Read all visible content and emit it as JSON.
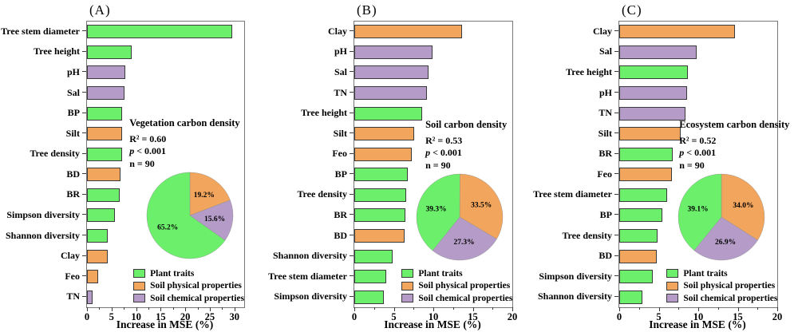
{
  "figure": {
    "background": "#ffffff",
    "colors": {
      "plant": "#6cf06c",
      "soil_physical": "#f2a55d",
      "soil_chemical": "#b59cc8"
    },
    "legend": [
      {
        "label": "Plant traits",
        "group": "plant"
      },
      {
        "label": "Soil physical properties",
        "group": "soil_physical"
      },
      {
        "label": "Soil chemical properties",
        "group": "soil_chemical"
      }
    ]
  },
  "chart_data": [
    {
      "type": "bar",
      "panel_label": "(A)",
      "inset_title": "Vegetation carbon density",
      "stats": {
        "r2": "R² = 0.60",
        "p": "p < 0.001",
        "n": "n = 90"
      },
      "xlabel": "Increase in MSE (%)",
      "x_ticks": [
        0,
        5,
        10,
        15,
        20,
        25,
        30
      ],
      "xlim": [
        0,
        32
      ],
      "bars": [
        {
          "label": "Tree stem diameter",
          "value": 29.6,
          "group": "plant"
        },
        {
          "label": "Tree height",
          "value": 9.1,
          "group": "plant"
        },
        {
          "label": "pH",
          "value": 7.8,
          "group": "soil_chemical"
        },
        {
          "label": "Sal",
          "value": 7.6,
          "group": "soil_chemical"
        },
        {
          "label": "BP",
          "value": 7.2,
          "group": "plant"
        },
        {
          "label": "Silt",
          "value": 7.2,
          "group": "soil_physical"
        },
        {
          "label": "Tree density",
          "value": 7.1,
          "group": "plant"
        },
        {
          "label": "BD",
          "value": 6.9,
          "group": "soil_physical"
        },
        {
          "label": "BR",
          "value": 6.7,
          "group": "plant"
        },
        {
          "label": "Simpson diversity",
          "value": 5.7,
          "group": "plant"
        },
        {
          "label": "Shannon diversity",
          "value": 4.2,
          "group": "plant"
        },
        {
          "label": "Clay",
          "value": 4.2,
          "group": "soil_physical"
        },
        {
          "label": "Feo",
          "value": 2.2,
          "group": "soil_physical"
        },
        {
          "label": "TN",
          "value": 1.2,
          "group": "soil_chemical"
        }
      ],
      "pie": {
        "slices_clockwise_from_top": [
          {
            "group": "soil_physical",
            "pct": 19.2,
            "label": "19.2%"
          },
          {
            "group": "soil_chemical",
            "pct": 15.6,
            "label": "15.6%"
          },
          {
            "group": "plant",
            "pct": 65.2,
            "label": "65.2%"
          }
        ]
      }
    },
    {
      "type": "bar",
      "panel_label": "(B)",
      "inset_title": "Soil carbon density",
      "stats": {
        "r2": "R² = 0.53",
        "p": "p < 0.001",
        "n": "n = 90"
      },
      "xlabel": "Increase in MSE (%)",
      "x_ticks": [
        0,
        5,
        10,
        15,
        20
      ],
      "xlim": [
        0,
        20
      ],
      "bars": [
        {
          "label": "Clay",
          "value": 13.6,
          "group": "soil_physical"
        },
        {
          "label": "pH",
          "value": 9.9,
          "group": "soil_chemical"
        },
        {
          "label": "Sal",
          "value": 9.4,
          "group": "soil_chemical"
        },
        {
          "label": "TN",
          "value": 9.2,
          "group": "soil_chemical"
        },
        {
          "label": "Tree height",
          "value": 8.6,
          "group": "plant"
        },
        {
          "label": "Silt",
          "value": 7.6,
          "group": "soil_physical"
        },
        {
          "label": "Feo",
          "value": 7.3,
          "group": "soil_physical"
        },
        {
          "label": "BP",
          "value": 6.8,
          "group": "plant"
        },
        {
          "label": "Tree density",
          "value": 6.6,
          "group": "plant"
        },
        {
          "label": "BR",
          "value": 6.5,
          "group": "plant"
        },
        {
          "label": "BD",
          "value": 6.4,
          "group": "soil_physical"
        },
        {
          "label": "Shannon diversity",
          "value": 4.8,
          "group": "plant"
        },
        {
          "label": "Tree stem diameter",
          "value": 4.0,
          "group": "plant"
        },
        {
          "label": "Simpson diversity",
          "value": 3.7,
          "group": "plant"
        }
      ],
      "pie": {
        "slices_clockwise_from_top": [
          {
            "group": "soil_physical",
            "pct": 33.5,
            "label": "33.5%"
          },
          {
            "group": "soil_chemical",
            "pct": 27.3,
            "label": "27.3%"
          },
          {
            "group": "plant",
            "pct": 39.3,
            "label": "39.3%"
          }
        ]
      }
    },
    {
      "type": "bar",
      "panel_label": "(C)",
      "inset_title": "Ecosystem carbon density",
      "stats": {
        "r2": "R² = 0.52",
        "p": "p < 0.001",
        "n": "n = 90"
      },
      "xlabel": "Increase in MSE (%)",
      "x_ticks": [
        0,
        5,
        10,
        15,
        20
      ],
      "xlim": [
        0,
        20
      ],
      "bars": [
        {
          "label": "Clay",
          "value": 14.6,
          "group": "soil_physical"
        },
        {
          "label": "Sal",
          "value": 9.8,
          "group": "soil_chemical"
        },
        {
          "label": "Tree height",
          "value": 8.7,
          "group": "plant"
        },
        {
          "label": "pH",
          "value": 8.6,
          "group": "soil_chemical"
        },
        {
          "label": "TN",
          "value": 8.4,
          "group": "soil_chemical"
        },
        {
          "label": "Silt",
          "value": 7.8,
          "group": "soil_physical"
        },
        {
          "label": "BR",
          "value": 6.8,
          "group": "plant"
        },
        {
          "label": "Feo",
          "value": 6.7,
          "group": "soil_physical"
        },
        {
          "label": "Tree stem diameter",
          "value": 6.1,
          "group": "plant"
        },
        {
          "label": "BP",
          "value": 5.5,
          "group": "plant"
        },
        {
          "label": "Tree density",
          "value": 4.8,
          "group": "plant"
        },
        {
          "label": "BD",
          "value": 4.7,
          "group": "soil_physical"
        },
        {
          "label": "Simpson diversity",
          "value": 4.2,
          "group": "plant"
        },
        {
          "label": "Shannon diversity",
          "value": 2.9,
          "group": "plant"
        }
      ],
      "pie": {
        "slices_clockwise_from_top": [
          {
            "group": "soil_physical",
            "pct": 34.0,
            "label": "34.0%"
          },
          {
            "group": "soil_chemical",
            "pct": 26.9,
            "label": "26.9%"
          },
          {
            "group": "plant",
            "pct": 39.1,
            "label": "39.1%"
          }
        ]
      }
    }
  ]
}
